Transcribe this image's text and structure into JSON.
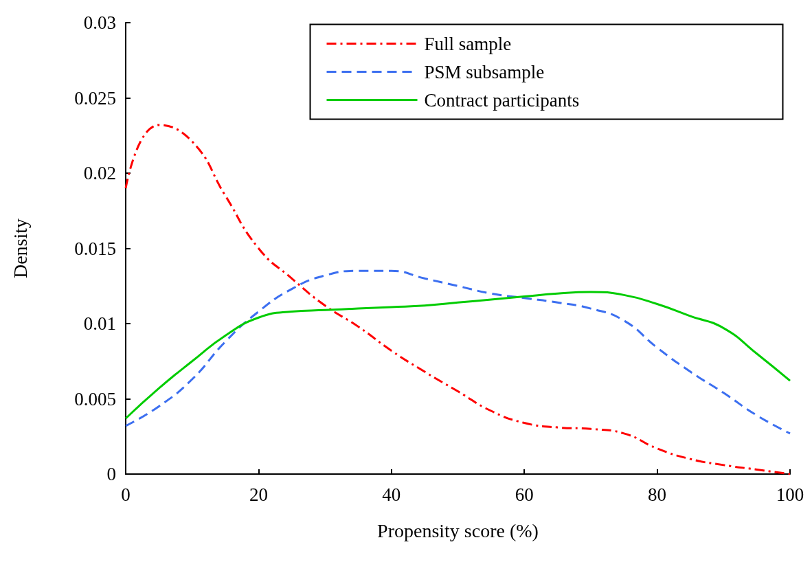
{
  "chart_data": {
    "type": "line",
    "xlabel": "Propensity score (%)",
    "ylabel": "Density",
    "x": [
      0,
      5,
      10,
      15,
      20,
      25,
      30,
      35,
      40,
      45,
      50,
      55,
      60,
      65,
      70,
      75,
      80,
      85,
      90,
      95,
      100
    ],
    "series": [
      {
        "name": "Full sample",
        "color": "#ff0000",
        "line_style": "dashdot",
        "values": [
          0.019,
          0.0232,
          0.0221,
          0.0185,
          0.015,
          0.013,
          0.0112,
          0.0098,
          0.0082,
          0.0068,
          0.0055,
          0.0042,
          0.0034,
          0.0031,
          0.003,
          0.0027,
          0.0017,
          0.001,
          0.0006,
          0.0003,
          0
        ]
      },
      {
        "name": "PSM subsample",
        "color": "#3c6ff0",
        "line_style": "dashed",
        "values": [
          0.0032,
          0.0045,
          0.0063,
          0.0088,
          0.0108,
          0.0123,
          0.0132,
          0.0135,
          0.0135,
          0.013,
          0.0125,
          0.012,
          0.0117,
          0.0114,
          0.011,
          0.0102,
          0.0084,
          0.0068,
          0.0054,
          0.0039,
          0.0027
        ]
      },
      {
        "name": "Contract participants",
        "color": "#00cc00",
        "line_style": "solid",
        "values": [
          0.0037,
          0.0057,
          0.0075,
          0.0092,
          0.0104,
          0.0108,
          0.0109,
          0.011,
          0.0111,
          0.0112,
          0.0114,
          0.0116,
          0.0118,
          0.012,
          0.0121,
          0.0119,
          0.0113,
          0.0105,
          0.0097,
          0.008,
          0.0062
        ]
      }
    ],
    "xlim": [
      0,
      100
    ],
    "xticks": [
      0,
      20,
      40,
      60,
      80,
      100
    ],
    "ylim": [
      0,
      0.03
    ],
    "yticks": [
      0,
      0.005,
      0.01,
      0.015,
      0.02,
      0.025,
      0.03
    ],
    "grid": false,
    "legend": "top right",
    "marker": "none"
  }
}
